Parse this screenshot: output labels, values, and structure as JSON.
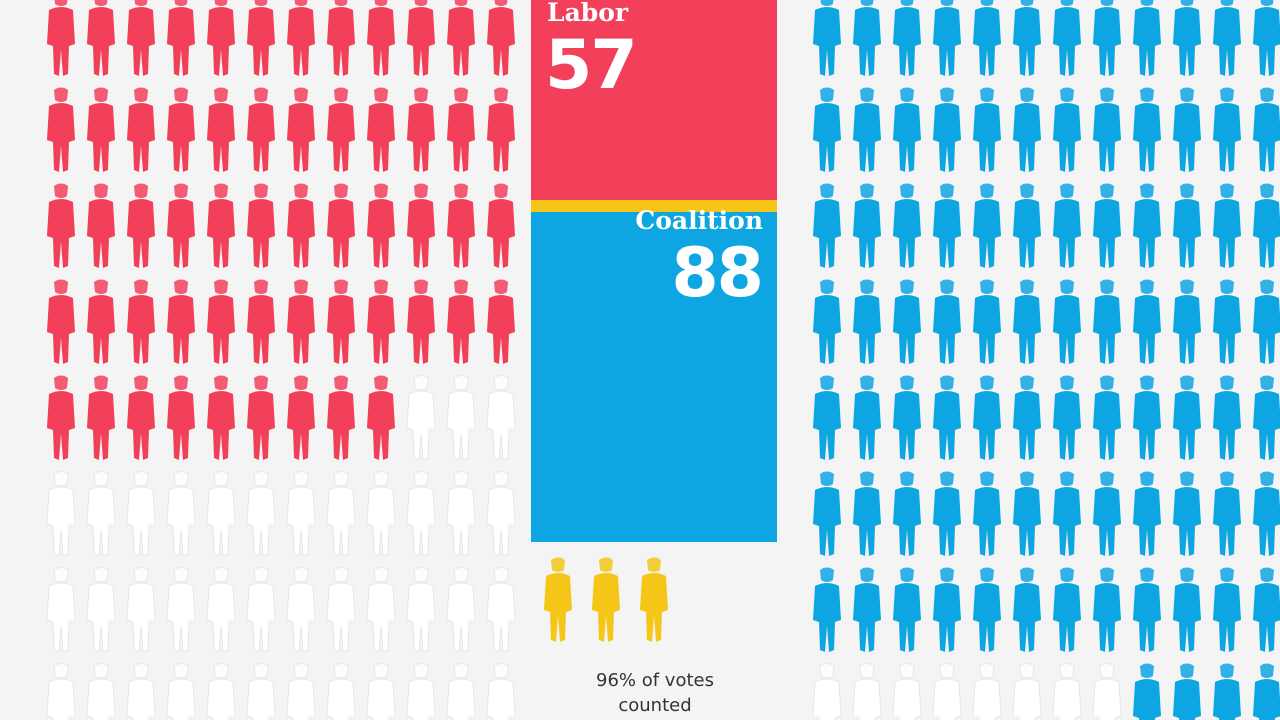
{
  "chart_data": {
    "type": "waffle",
    "series": [
      {
        "name": "Labor",
        "value": 57
      },
      {
        "name": "Coalition",
        "value": 88
      },
      {
        "value": 3
      }
    ],
    "total_seats_shown": 150
  },
  "panels": {
    "labor": {
      "name": "Labor",
      "seats": "57"
    },
    "coalition": {
      "name": "Coalition",
      "seats": "88"
    }
  },
  "note": "96% of votes counted",
  "colors": {
    "labor": "#f2405a",
    "coalition": "#0ea5e3",
    "others": "#f5c518",
    "undecided": "#ffffff",
    "background": "#f4f4f4"
  },
  "icons": {
    "seat": "person-icon"
  }
}
